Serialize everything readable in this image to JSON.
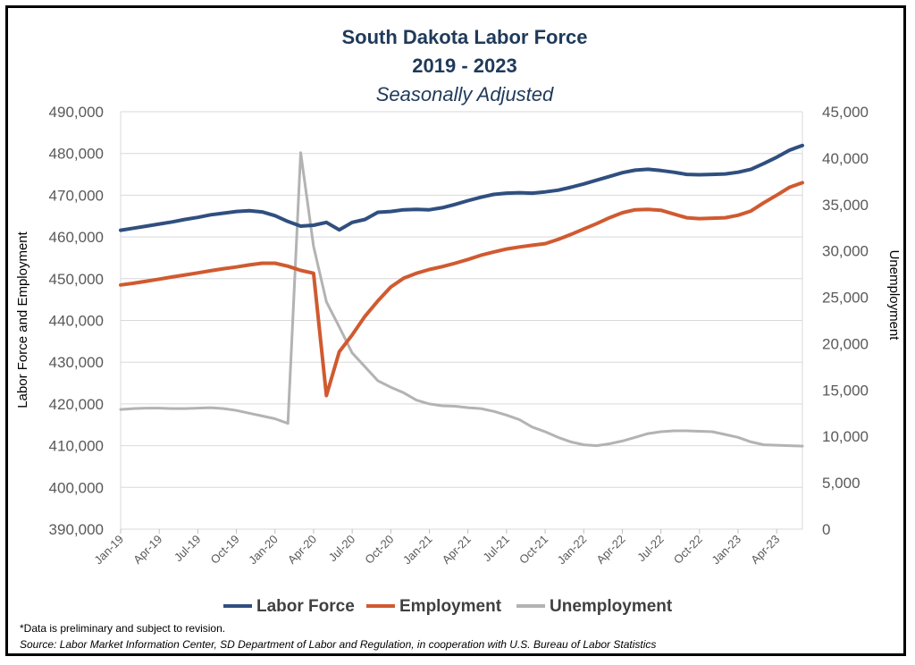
{
  "chart_data": {
    "type": "line",
    "title": "South Dakota Labor Force",
    "title_line2": "2019 - 2023",
    "subtitle": "Seasonally Adjusted",
    "ylabel": "Labor  Force and Employment",
    "y2label": "Unemployment",
    "ylim": [
      390000,
      490000
    ],
    "y2lim": [
      0,
      45000
    ],
    "yticks": [
      "390,000",
      "400,000",
      "410,000",
      "420,000",
      "430,000",
      "440,000",
      "450,000",
      "460,000",
      "470,000",
      "480,000",
      "490,000"
    ],
    "y2ticks": [
      "0",
      "5,000",
      "10,000",
      "15,000",
      "20,000",
      "25,000",
      "30,000",
      "35,000",
      "40,000",
      "45,000"
    ],
    "xtick_labels": [
      "Jan-19",
      "Apr-19",
      "Jul-19",
      "Oct-19",
      "Jan-20",
      "Apr-20",
      "Jul-20",
      "Oct-20",
      "Jan-21",
      "Apr-21",
      "Jul-21",
      "Oct-21",
      "Jan-22",
      "Apr-22",
      "Jul-22",
      "Oct-22",
      "Jan-23",
      "Apr-23"
    ],
    "grid": true,
    "legend_position": "bottom",
    "series": [
      {
        "name": "Labor Force",
        "axis": "left",
        "color": "#2f4f7f",
        "values": [
          461600,
          462100,
          462600,
          463100,
          463600,
          464200,
          464700,
          465300,
          465700,
          466100,
          466300,
          466000,
          465100,
          463700,
          462600,
          462800,
          463500,
          461700,
          463500,
          464200,
          465900,
          466100,
          466500,
          466600,
          466500,
          467000,
          467800,
          468700,
          469500,
          470200,
          470500,
          470600,
          470500,
          470800,
          471200,
          471900,
          472700,
          473600,
          474500,
          475400,
          476000,
          476200,
          475900,
          475500,
          475000,
          474900,
          475000,
          475100,
          475500,
          476200,
          477600,
          479100,
          480800,
          481900
        ]
      },
      {
        "name": "Employment",
        "axis": "left",
        "color": "#d05a30",
        "values": [
          448500,
          448900,
          449400,
          449900,
          450400,
          450900,
          451400,
          451900,
          452400,
          452800,
          453300,
          453700,
          453700,
          453000,
          452000,
          451300,
          422000,
          432500,
          436500,
          441000,
          444700,
          448000,
          450100,
          451300,
          452200,
          452900,
          453700,
          454600,
          455600,
          456400,
          457100,
          457600,
          458000,
          458400,
          459400,
          460600,
          461900,
          463200,
          464600,
          465800,
          466500,
          466600,
          466400,
          465500,
          464600,
          464400,
          464500,
          464600,
          465200,
          466200,
          468200,
          470000,
          471900,
          473000
        ]
      },
      {
        "name": "Unemployment",
        "axis": "right",
        "color": "#b3b3b3",
        "values": [
          12900,
          13000,
          13050,
          13050,
          13000,
          13000,
          13050,
          13100,
          13000,
          12800,
          12500,
          12200,
          11900,
          11400,
          40600,
          30500,
          24500,
          21800,
          19000,
          17500,
          16000,
          15300,
          14700,
          13900,
          13500,
          13300,
          13250,
          13100,
          13000,
          12700,
          12300,
          11800,
          11000,
          10500,
          9900,
          9400,
          9100,
          9000,
          9200,
          9500,
          9900,
          10300,
          10500,
          10600,
          10600,
          10550,
          10500,
          10200,
          9900,
          9400,
          9100,
          9050,
          9000,
          8950
        ]
      }
    ]
  },
  "footnote": "*Data is preliminary and subject to revision.",
  "source": "Source: Labor Market Information Center, SD Department of Labor and Regulation, in cooperation with U.S. Bureau of Labor Statistics"
}
